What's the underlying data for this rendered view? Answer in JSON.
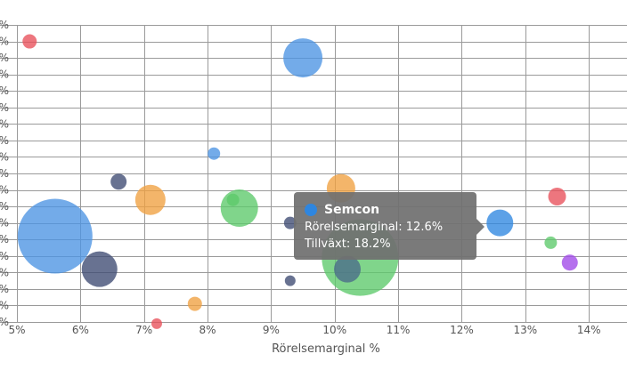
{
  "chart_data": {
    "type": "bubble",
    "xlabel": "Rörelsemarginal %",
    "x_ticks": [
      "5%",
      "6%",
      "7%",
      "8%",
      "9%",
      "10%",
      "11%",
      "12%",
      "13%",
      "14%"
    ],
    "xlim": [
      5,
      14.6
    ],
    "ylim": [
      -18,
      0
    ],
    "y_tick_labels": [
      "%",
      "%",
      "%",
      "%",
      "%",
      "%",
      "%",
      "%",
      "%",
      "%",
      "%",
      "%",
      "%",
      "%",
      "%",
      "%",
      "%",
      "%",
      "%"
    ],
    "grid": true,
    "points": [
      {
        "x": 5.2,
        "y": -1.0,
        "size": 8,
        "color": "#e8505a"
      },
      {
        "x": 9.5,
        "y": -2.0,
        "size": 22,
        "color": "#4b94e3"
      },
      {
        "x": 8.1,
        "y": -7.8,
        "size": 7,
        "color": "#4b94e3"
      },
      {
        "x": 6.6,
        "y": -9.5,
        "size": 9,
        "color": "#3e4a72"
      },
      {
        "x": 7.1,
        "y": -10.6,
        "size": 17,
        "color": "#f0a040"
      },
      {
        "x": 8.5,
        "y": -11.1,
        "size": 21,
        "color": "#5cc96a"
      },
      {
        "x": 8.4,
        "y": -10.6,
        "size": 7,
        "color": "#5cc96a"
      },
      {
        "x": 10.1,
        "y": -9.9,
        "size": 16,
        "color": "#f0a040"
      },
      {
        "x": 9.3,
        "y": -12.0,
        "size": 7,
        "color": "#3e4a72"
      },
      {
        "x": 10.4,
        "y": -14.1,
        "size": 43,
        "color": "#5cc96a"
      },
      {
        "x": 10.2,
        "y": -14.8,
        "size": 15,
        "color": "#4a6a8a"
      },
      {
        "x": 5.6,
        "y": -12.8,
        "size": 42,
        "color": "#4b94e3"
      },
      {
        "x": 6.3,
        "y": -14.8,
        "size": 20,
        "color": "#3e4a72"
      },
      {
        "x": 9.3,
        "y": -15.5,
        "size": 6,
        "color": "#3e4a72"
      },
      {
        "x": 7.8,
        "y": -16.9,
        "size": 8,
        "color": "#f0a040"
      },
      {
        "x": 7.2,
        "y": -18.1,
        "size": 6,
        "color": "#e8505a"
      },
      {
        "x": 12.6,
        "y": -12.0,
        "size": 15,
        "color": "#2e86e0"
      },
      {
        "x": 13.5,
        "y": -10.4,
        "size": 10,
        "color": "#e8505a"
      },
      {
        "x": 13.4,
        "y": -13.2,
        "size": 7,
        "color": "#5cc96a"
      },
      {
        "x": 13.7,
        "y": -14.4,
        "size": 9,
        "color": "#a048e8"
      }
    ],
    "tooltip": {
      "series": "Semcon",
      "color": "#2e86e0",
      "line1": "Rörelsemarginal: 12.6%",
      "line2": "Tillväxt: 18.2%"
    }
  }
}
